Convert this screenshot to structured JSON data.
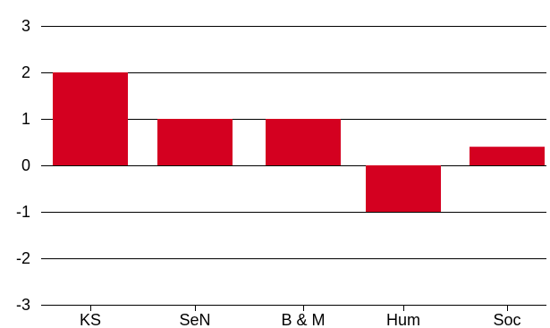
{
  "chart_data": {
    "type": "bar",
    "title": "",
    "xlabel": "",
    "ylabel": "",
    "categories": [
      "KS",
      "SeN",
      "B & M",
      "Hum",
      "Soc"
    ],
    "values": [
      2,
      1,
      1,
      -1,
      0.4
    ],
    "ylim": [
      -3,
      3
    ],
    "yticks": [
      "-3",
      "-2",
      "-1",
      "0",
      "1",
      "2",
      "3"
    ],
    "grid": "horizontal",
    "legend": "none",
    "colors": {
      "bar": "#d40020",
      "gridline": "#000000",
      "text": "#000000"
    }
  }
}
